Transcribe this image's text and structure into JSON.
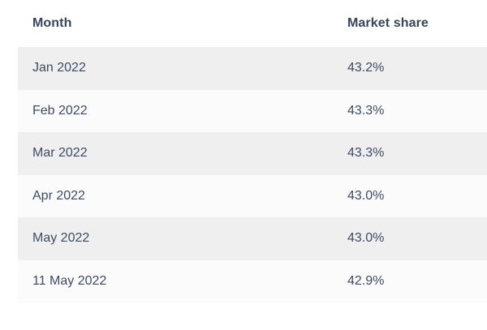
{
  "table": {
    "header": {
      "month_label": "Month",
      "share_label": "Market share"
    },
    "rows": [
      {
        "month": "Jan 2022",
        "share": "43.2%"
      },
      {
        "month": "Feb 2022",
        "share": "43.3%"
      },
      {
        "month": "Mar 2022",
        "share": "43.3%"
      },
      {
        "month": "Apr 2022",
        "share": "43.0%"
      },
      {
        "month": "May 2022",
        "share": "43.0%"
      },
      {
        "month": "11 May 2022",
        "share": "42.9%"
      }
    ],
    "colors": {
      "stripe_bg": "#efefef",
      "row_bg": "#fbfbfc",
      "header_text": "#36455a",
      "body_text": "#3d4c63",
      "page_bg": "#ffffff"
    }
  },
  "chart_data": {
    "type": "table",
    "title": "",
    "columns": [
      "Month",
      "Market share"
    ],
    "rows": [
      [
        "Jan 2022",
        "43.2%"
      ],
      [
        "Feb 2022",
        "43.3%"
      ],
      [
        "Mar 2022",
        "43.3%"
      ],
      [
        "Apr 2022",
        "43.0%"
      ],
      [
        "May 2022",
        "43.0%"
      ],
      [
        "11 May 2022",
        "42.9%"
      ]
    ],
    "market_share_numeric": [
      43.2,
      43.3,
      43.3,
      43.0,
      43.0,
      42.9
    ],
    "layout": {
      "striped_rows": true,
      "stripe_pattern": "odd-rows-gray",
      "gridlines": false
    }
  }
}
